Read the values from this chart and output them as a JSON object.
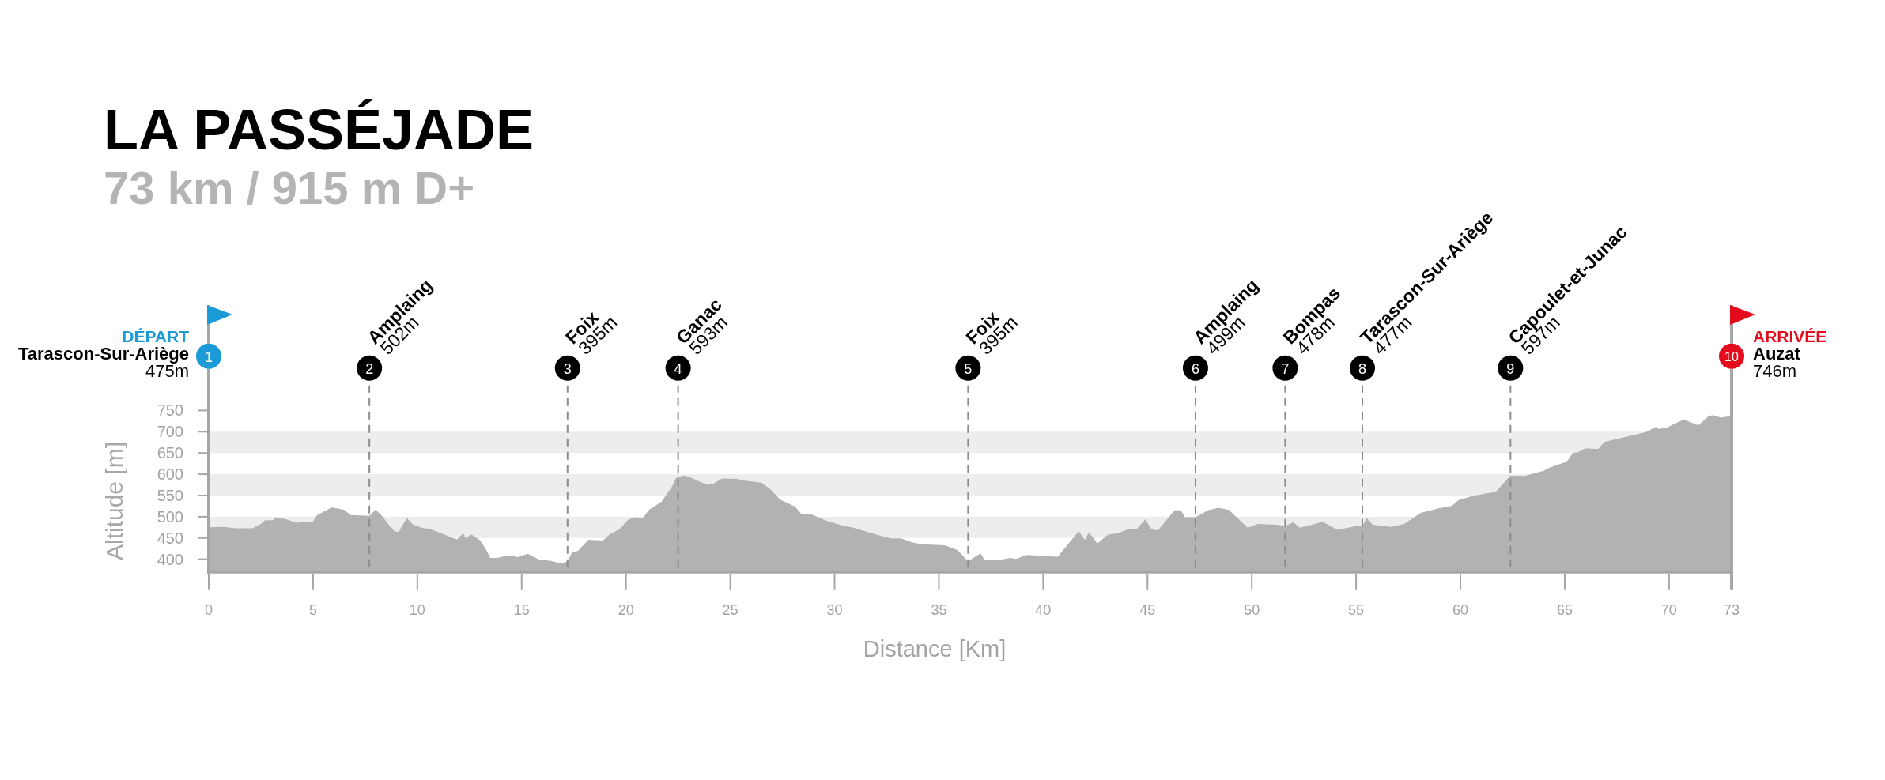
{
  "chart_data": {
    "type": "area",
    "title": "LA PASSÉJADE",
    "subtitle": "73 km / 915 m D+",
    "xlabel": "Distance [Km]",
    "ylabel": "Altitude [m]",
    "x": [
      0,
      0.7,
      1.3,
      2.1,
      2.5,
      2.7,
      3.1,
      3.2,
      3.7,
      4.2,
      5.0,
      5.2,
      5.9,
      6.5,
      6.8,
      7.7,
      8.0,
      8.3,
      8.6,
      8.9,
      9.1,
      9.5,
      9.8,
      10.2,
      10.6,
      11.0,
      11.6,
      11.9,
      12.2,
      12.3,
      12.6,
      13.0,
      13.3,
      13.5,
      13.8,
      14.4,
      14.8,
      15.3,
      15.8,
      16.4,
      16.9,
      17.2,
      17.4,
      17.7,
      18.2,
      18.9,
      19.2,
      19.7,
      20.1,
      20.4,
      20.8,
      21.1,
      21.7,
      22.2,
      22.4,
      22.5,
      22.8,
      23.0,
      23.9,
      24.2,
      24.6,
      25.3,
      25.7,
      26.5,
      26.9,
      27.4,
      28.1,
      28.4,
      28.8,
      29.6,
      30.4,
      30.9,
      32.0,
      32.7,
      33.2,
      33.7,
      34.2,
      35.3,
      35.9,
      36.4,
      37.0,
      37.2,
      37.9,
      38.4,
      38.7,
      39.2,
      40.7,
      41.7,
      42.0,
      42.2,
      42.6,
      43.1,
      43.6,
      44.1,
      44.5,
      44.9,
      45.2,
      45.5,
      46.3,
      46.6,
      46.8,
      47.3,
      47.9,
      48.4,
      48.9,
      49.8,
      50.3,
      51.2,
      51.6,
      52.0,
      52.3,
      52.7,
      53.4,
      54.1,
      55.0,
      55.3,
      55.5,
      55.8,
      56.7,
      57.3,
      58.1,
      59.0,
      59.6,
      59.9,
      60.6,
      61.7,
      62.4,
      63.1,
      63.5,
      64.0,
      64.2,
      65.1,
      65.4,
      65.6,
      66.0,
      66.6,
      66.9,
      67.7,
      68.9,
      69.4,
      69.5,
      69.9,
      70.7,
      71.4,
      71.9,
      72.1,
      72.5,
      72.9,
      73
    ],
    "values": [
      475,
      476,
      473,
      473,
      483,
      492,
      492,
      499,
      494,
      486,
      489,
      504,
      522,
      516,
      504,
      502,
      517,
      502,
      483,
      466,
      464,
      497,
      481,
      474,
      471,
      464,
      452,
      447,
      461,
      450,
      458,
      445,
      422,
      403,
      403,
      409,
      405,
      413,
      400,
      396,
      390,
      395,
      415,
      420,
      446,
      444,
      458,
      471,
      493,
      499,
      496,
      516,
      535,
      571,
      591,
      593,
      597,
      594,
      575,
      578,
      590,
      589,
      585,
      580,
      566,
      540,
      524,
      507,
      507,
      491,
      479,
      474,
      458,
      449,
      449,
      440,
      435,
      433,
      421,
      395,
      414,
      398,
      398,
      403,
      401,
      410,
      406,
      466,
      446,
      463,
      437,
      458,
      461,
      471,
      472,
      494,
      470,
      468,
      515,
      515,
      499,
      499,
      515,
      521,
      516,
      474,
      483,
      481,
      478,
      487,
      474,
      479,
      488,
      469,
      478,
      477,
      497,
      481,
      476,
      483,
      509,
      520,
      526,
      539,
      549,
      559,
      597,
      596,
      602,
      608,
      614,
      630,
      651,
      651,
      661,
      659,
      676,
      685,
      699,
      712,
      706,
      710,
      729,
      715,
      737,
      739,
      733,
      737,
      746
    ],
    "color": "#b2b2b4",
    "xlim": [
      0,
      73
    ],
    "xticks": [
      0,
      5,
      10,
      15,
      20,
      25,
      30,
      35,
      40,
      45,
      50,
      55,
      60,
      65,
      70,
      73
    ],
    "ylim": [
      370,
      848
    ],
    "yticks": [
      400,
      450,
      500,
      550,
      600,
      650,
      700,
      750
    ],
    "bands": [
      {
        "axis": "y",
        "from": 450,
        "to": 500,
        "color": "#ededee"
      },
      {
        "axis": "y",
        "from": 550,
        "to": 600,
        "color": "#ededee"
      },
      {
        "axis": "y",
        "from": 650,
        "to": 700,
        "color": "#ededee"
      }
    ],
    "ref_lines": [
      {
        "axis": "x",
        "value": 0,
        "label": "Tarascon-Sur-Ariège",
        "line_style": "solid"
      },
      {
        "axis": "x",
        "value": 7.7,
        "label": "Amplaing",
        "line_style": "dashed"
      },
      {
        "axis": "x",
        "value": 17.2,
        "label": "Foix",
        "line_style": "dashed"
      },
      {
        "axis": "x",
        "value": 22.5,
        "label": "Ganac",
        "line_style": "dashed"
      },
      {
        "axis": "x",
        "value": 36.4,
        "label": "Foix",
        "line_style": "dashed"
      },
      {
        "axis": "x",
        "value": 47.3,
        "label": "Amplaing",
        "line_style": "dashed"
      },
      {
        "axis": "x",
        "value": 51.6,
        "label": "Bompas",
        "line_style": "dashed"
      },
      {
        "axis": "x",
        "value": 55.3,
        "label": "Tarascon-Sur-Ariège",
        "line_style": "dashed"
      },
      {
        "axis": "x",
        "value": 62.4,
        "label": "Capoulet-et-Junac",
        "line_style": "dashed"
      },
      {
        "axis": "x",
        "value": 73,
        "label": "Auzat",
        "line_style": "solid"
      }
    ],
    "annotations": [
      "DÉPART",
      "1",
      "475m",
      "2",
      "502m",
      "3",
      "395m",
      "4",
      "593m",
      "5",
      "395m",
      "6",
      "499m",
      "7",
      "478m",
      "8",
      "477m",
      "9",
      "597m",
      "ARRIVÉE",
      "10",
      "746m"
    ]
  }
}
